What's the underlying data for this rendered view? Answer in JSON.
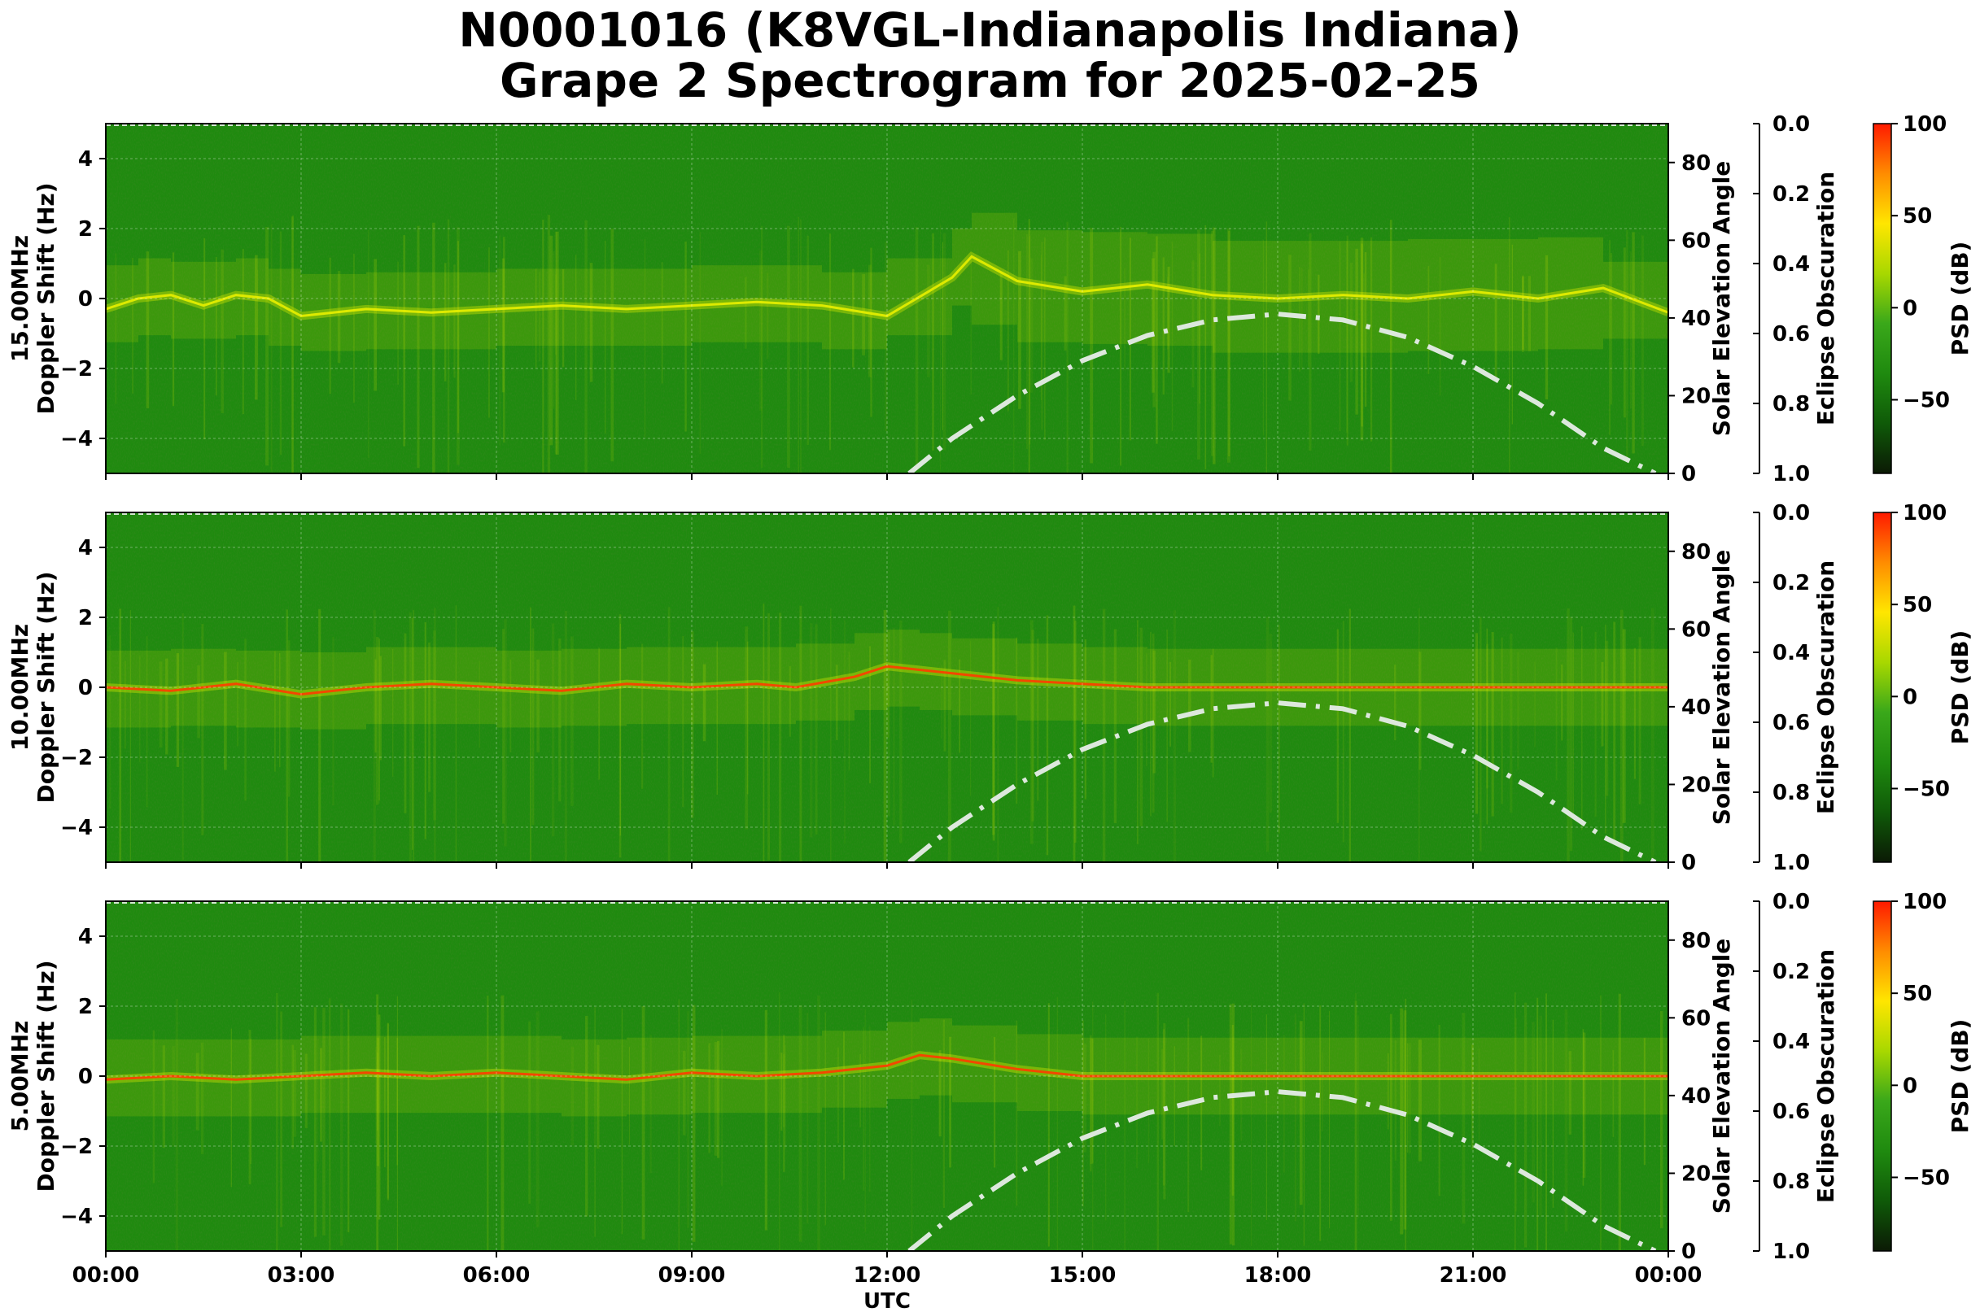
{
  "title_line1": "N0001016 (K8VGL-Indianapolis Indiana)",
  "title_line2": "Grape 2 Spectrogram for 2025-02-25",
  "colors": {
    "spectrogram_background": "#1f8a0f",
    "signal_yellow": "#e8f000",
    "signal_red": "#ff3c00",
    "solar_curve": "#dde8dd",
    "colormap": [
      "#0b1a05",
      "#0f5a08",
      "#1f8a0f",
      "#3aa81a",
      "#a8d800",
      "#ffe600",
      "#ff8c00",
      "#ff1a00"
    ]
  },
  "chart_data": [
    {
      "type": "heatmap",
      "panel": "15MHz",
      "ylabel_line1": "15.00MHz",
      "ylabel_line2": "Doppler Shift (Hz)",
      "xlabel": "",
      "ylim": [
        -5,
        5
      ],
      "yticks": [
        "4",
        "2",
        "0",
        "−2",
        "−4"
      ],
      "ytick_values": [
        4,
        2,
        0,
        -2,
        -4
      ],
      "xticks": [
        "00:00",
        "03:00",
        "06:00",
        "09:00",
        "12:00",
        "15:00",
        "18:00",
        "21:00",
        "00:00"
      ],
      "grid": true,
      "right_axis": {
        "label": "Solar Elevation Angle",
        "ylim": [
          0,
          90
        ],
        "ticks": [
          "0",
          "20",
          "40",
          "60",
          "80"
        ],
        "tick_values": [
          0,
          20,
          40,
          60,
          80
        ]
      },
      "eclipse_axis": {
        "label": "Eclipse Obscuration",
        "ticks": [
          "0.0",
          "0.2",
          "0.4",
          "0.6",
          "0.8",
          "1.0"
        ],
        "tick_values": [
          0.0,
          0.2,
          0.4,
          0.6,
          0.8,
          1.0
        ]
      },
      "colorbar": {
        "label": "PSD (dB)",
        "range": [
          -90,
          100
        ],
        "ticks": [
          "100",
          "50",
          "0",
          "−50"
        ],
        "tick_values": [
          100,
          50,
          0,
          -50
        ]
      },
      "doppler_trace": {
        "x_hours": [
          0,
          0.5,
          1,
          1.5,
          2,
          2.5,
          3,
          4,
          5,
          6,
          7,
          8,
          9,
          10,
          11,
          12,
          13,
          13.3,
          14,
          15,
          16,
          17,
          18,
          19,
          20,
          21,
          22,
          23,
          24
        ],
        "y_hz": [
          -0.3,
          0.0,
          0.1,
          -0.2,
          0.1,
          0.0,
          -0.5,
          -0.3,
          -0.4,
          -0.3,
          -0.2,
          -0.3,
          -0.2,
          -0.1,
          -0.2,
          -0.5,
          0.6,
          1.2,
          0.5,
          0.2,
          0.4,
          0.1,
          0.0,
          0.1,
          0.0,
          0.2,
          0.0,
          0.3,
          -0.4
        ]
      },
      "solar_elevation": {
        "x_hours": [
          12.34,
          13,
          14,
          15,
          16,
          17,
          18,
          19,
          20,
          21,
          22,
          23,
          23.8
        ],
        "y_deg": [
          0,
          9,
          20,
          29,
          35.5,
          39.5,
          41,
          39.5,
          35,
          27.5,
          18,
          6.5,
          0
        ]
      }
    },
    {
      "type": "heatmap",
      "panel": "10MHz",
      "ylabel_line1": "10.00MHz",
      "ylabel_line2": "Doppler Shift (Hz)",
      "xlabel": "",
      "ylim": [
        -5,
        5
      ],
      "yticks": [
        "4",
        "2",
        "0",
        "−2",
        "−4"
      ],
      "ytick_values": [
        4,
        2,
        0,
        -2,
        -4
      ],
      "xticks": [
        "00:00",
        "03:00",
        "06:00",
        "09:00",
        "12:00",
        "15:00",
        "18:00",
        "21:00",
        "00:00"
      ],
      "grid": true,
      "right_axis": {
        "label": "Solar Elevation Angle",
        "ylim": [
          0,
          90
        ],
        "ticks": [
          "0",
          "20",
          "40",
          "60",
          "80"
        ],
        "tick_values": [
          0,
          20,
          40,
          60,
          80
        ]
      },
      "eclipse_axis": {
        "label": "Eclipse Obscuration",
        "ticks": [
          "0.0",
          "0.2",
          "0.4",
          "0.6",
          "0.8",
          "1.0"
        ],
        "tick_values": [
          0.0,
          0.2,
          0.4,
          0.6,
          0.8,
          1.0
        ]
      },
      "colorbar": {
        "label": "PSD (dB)",
        "range": [
          -90,
          100
        ],
        "ticks": [
          "100",
          "50",
          "0",
          "−50"
        ],
        "tick_values": [
          100,
          50,
          0,
          -50
        ]
      },
      "doppler_trace": {
        "x_hours": [
          0,
          1,
          2,
          3,
          4,
          5,
          6,
          7,
          8,
          9,
          10,
          10.6,
          11.5,
          12,
          12.5,
          13,
          14,
          15,
          16,
          17,
          18,
          19,
          20,
          21,
          22,
          23,
          24
        ],
        "y_hz": [
          0.0,
          -0.1,
          0.1,
          -0.2,
          0.0,
          0.1,
          0.0,
          -0.1,
          0.1,
          0.0,
          0.1,
          0.0,
          0.3,
          0.6,
          0.5,
          0.4,
          0.2,
          0.1,
          0.0,
          0.0,
          0.0,
          0.0,
          0.0,
          0.0,
          0.0,
          0.0,
          0.0
        ]
      },
      "solar_elevation": {
        "x_hours": [
          12.34,
          13,
          14,
          15,
          16,
          17,
          18,
          19,
          20,
          21,
          22,
          23,
          23.8
        ],
        "y_deg": [
          0,
          9,
          20,
          29,
          35.5,
          39.5,
          41,
          39.5,
          35,
          27.5,
          18,
          6.5,
          0
        ]
      }
    },
    {
      "type": "heatmap",
      "panel": "5MHz",
      "ylabel_line1": "5.00MHz",
      "ylabel_line2": "Doppler Shift (Hz)",
      "xlabel": "UTC",
      "ylim": [
        -5,
        5
      ],
      "yticks": [
        "4",
        "2",
        "0",
        "−2",
        "−4"
      ],
      "ytick_values": [
        4,
        2,
        0,
        -2,
        -4
      ],
      "xticks": [
        "00:00",
        "03:00",
        "06:00",
        "09:00",
        "12:00",
        "15:00",
        "18:00",
        "21:00",
        "00:00"
      ],
      "grid": true,
      "right_axis": {
        "label": "Solar Elevation Angle",
        "ylim": [
          0,
          90
        ],
        "ticks": [
          "0",
          "20",
          "40",
          "60",
          "80"
        ],
        "tick_values": [
          0,
          20,
          40,
          60,
          80
        ]
      },
      "eclipse_axis": {
        "label": "Eclipse Obscuration",
        "ticks": [
          "0.0",
          "0.2",
          "0.4",
          "0.6",
          "0.8",
          "1.0"
        ],
        "tick_values": [
          0.0,
          0.2,
          0.4,
          0.6,
          0.8,
          1.0
        ]
      },
      "colorbar": {
        "label": "PSD (dB)",
        "range": [
          -90,
          100
        ],
        "ticks": [
          "100",
          "50",
          "0",
          "−50"
        ],
        "tick_values": [
          100,
          50,
          0,
          -50
        ]
      },
      "doppler_trace": {
        "x_hours": [
          0,
          1,
          2,
          3,
          4,
          5,
          6,
          7,
          8,
          9,
          10,
          11,
          12,
          12.5,
          13,
          14,
          15,
          16,
          17,
          18,
          19,
          20,
          21,
          22,
          23,
          24
        ],
        "y_hz": [
          -0.1,
          0.0,
          -0.1,
          0.0,
          0.1,
          0.0,
          0.1,
          0.0,
          -0.1,
          0.1,
          0.0,
          0.1,
          0.3,
          0.6,
          0.5,
          0.2,
          0.0,
          0.0,
          0.0,
          0.0,
          0.0,
          0.0,
          0.0,
          0.0,
          0.0,
          0.0
        ]
      },
      "solar_elevation": {
        "x_hours": [
          12.34,
          13,
          14,
          15,
          16,
          17,
          18,
          19,
          20,
          21,
          22,
          23,
          23.8
        ],
        "y_deg": [
          0,
          9,
          20,
          29,
          35.5,
          39.5,
          41,
          39.5,
          35,
          27.5,
          18,
          6.5,
          0
        ]
      }
    }
  ]
}
